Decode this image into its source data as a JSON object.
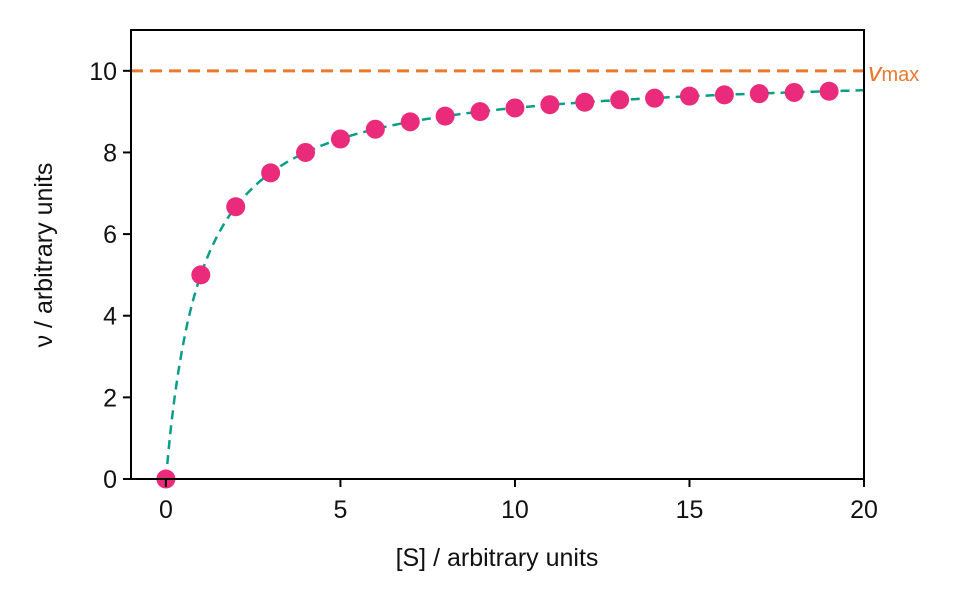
{
  "chart_data": {
    "type": "scatter",
    "title": "",
    "xlabel": "[S] / arbitrary units",
    "ylabel": "ν / arbitrary units",
    "xlim": [
      -1,
      20
    ],
    "ylim": [
      0,
      11
    ],
    "xticks": [
      0,
      5,
      10,
      15,
      20
    ],
    "yticks": [
      0,
      2,
      4,
      6,
      8,
      10
    ],
    "grid": false,
    "series": [
      {
        "name": "data",
        "kind": "points",
        "color": "#ea2a7a",
        "x": [
          0,
          1,
          2,
          3,
          4,
          5,
          6,
          7,
          8,
          9,
          10,
          11,
          12,
          13,
          14,
          15,
          16,
          17,
          18,
          19
        ],
        "y": [
          0,
          5.0,
          6.67,
          7.5,
          8.0,
          8.33,
          8.57,
          8.75,
          8.89,
          9.0,
          9.09,
          9.17,
          9.23,
          9.29,
          9.33,
          9.38,
          9.41,
          9.44,
          9.47,
          9.5
        ]
      },
      {
        "name": "fit",
        "kind": "dashed-line",
        "color": "#0a9e88",
        "model": "vmax*S/(Km+S)",
        "vmax": 10,
        "Km": 1
      }
    ],
    "annotations": [
      {
        "type": "hline",
        "y": 10,
        "color": "#e8792f",
        "label_main": "v",
        "label_sub": "max"
      }
    ]
  }
}
